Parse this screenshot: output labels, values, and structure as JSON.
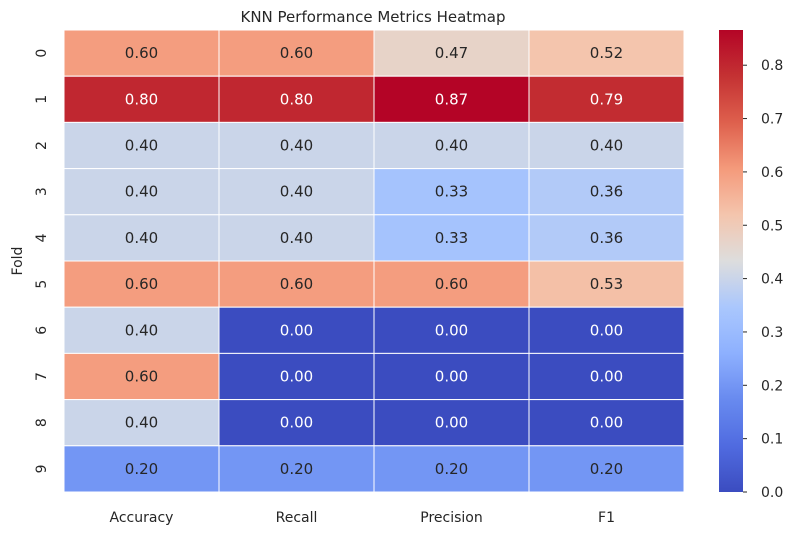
{
  "chart_data": {
    "type": "heatmap",
    "title": "KNN Performance Metrics Heatmap",
    "xlabel": "",
    "ylabel": "Fold",
    "columns": [
      "Accuracy",
      "Recall",
      "Precision",
      "F1"
    ],
    "rows": [
      "0",
      "1",
      "2",
      "3",
      "4",
      "5",
      "6",
      "7",
      "8",
      "9"
    ],
    "values": [
      [
        0.6,
        0.6,
        0.47,
        0.52
      ],
      [
        0.8,
        0.8,
        0.87,
        0.79
      ],
      [
        0.4,
        0.4,
        0.4,
        0.4
      ],
      [
        0.4,
        0.4,
        0.33,
        0.36
      ],
      [
        0.4,
        0.4,
        0.33,
        0.36
      ],
      [
        0.6,
        0.6,
        0.6,
        0.53
      ],
      [
        0.4,
        0.0,
        0.0,
        0.0
      ],
      [
        0.6,
        0.0,
        0.0,
        0.0
      ],
      [
        0.4,
        0.0,
        0.0,
        0.0
      ],
      [
        0.2,
        0.2,
        0.2,
        0.2
      ]
    ],
    "annotations": [
      [
        "0.60",
        "0.60",
        "0.47",
        "0.52"
      ],
      [
        "0.80",
        "0.80",
        "0.87",
        "0.79"
      ],
      [
        "0.40",
        "0.40",
        "0.40",
        "0.40"
      ],
      [
        "0.40",
        "0.40",
        "0.33",
        "0.36"
      ],
      [
        "0.40",
        "0.40",
        "0.33",
        "0.36"
      ],
      [
        "0.60",
        "0.60",
        "0.60",
        "0.53"
      ],
      [
        "0.40",
        "0.00",
        "0.00",
        "0.00"
      ],
      [
        "0.60",
        "0.00",
        "0.00",
        "0.00"
      ],
      [
        "0.40",
        "0.00",
        "0.00",
        "0.00"
      ],
      [
        "0.20",
        "0.20",
        "0.20",
        "0.20"
      ]
    ],
    "colormap": "coolwarm",
    "vmin": 0.0,
    "vmax": 0.866,
    "colorbar_ticks": [
      "0.0",
      "0.1",
      "0.2",
      "0.3",
      "0.4",
      "0.5",
      "0.6",
      "0.7",
      "0.8"
    ],
    "colorbar_tick_values": [
      0.0,
      0.1,
      0.2,
      0.3,
      0.4,
      0.5,
      0.6,
      0.7,
      0.8
    ],
    "cell_border_color": "#ffffff",
    "grid": false
  }
}
